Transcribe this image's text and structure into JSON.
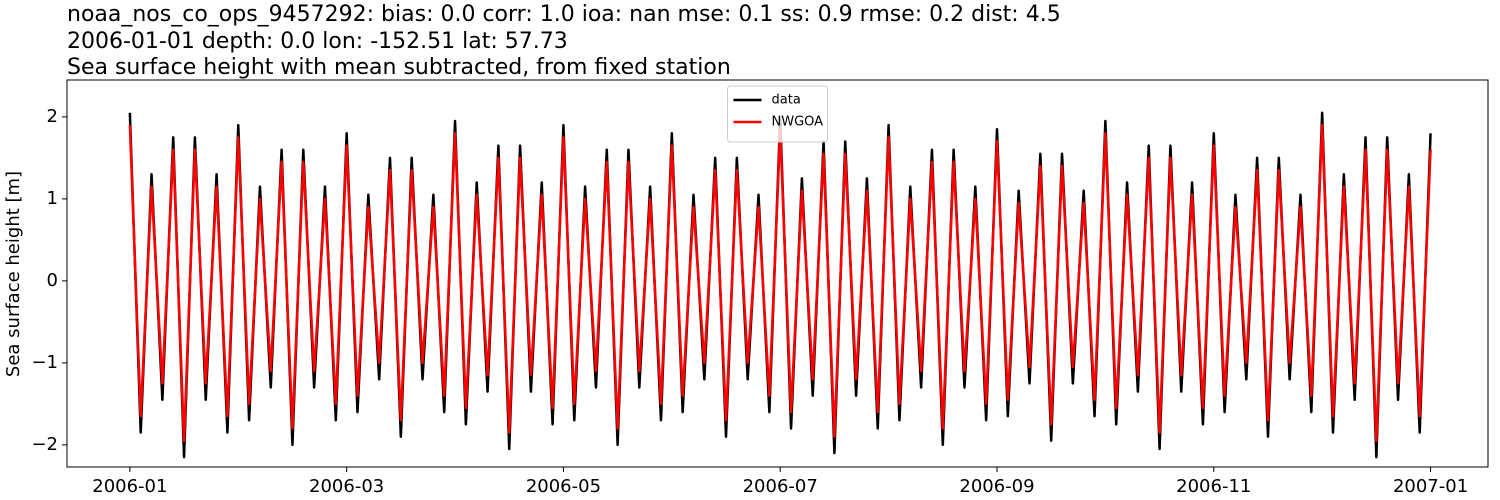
{
  "chart_data": {
    "type": "line",
    "title": [
      "noaa_nos_co_ops_9457292: bias: 0.0  corr: 1.0  ioa: nan  mse: 0.1  ss: 0.9  rmse: 0.2  dist: 4.5",
      "2006-01-01 depth: 0.0 lon: -152.51 lat: 57.73",
      "Sea surface height with mean subtracted, from fixed station"
    ],
    "ylabel": "Sea surface height [m]",
    "xlim": [
      -0.58,
      12.53
    ],
    "ylim": [
      -2.27,
      2.45
    ],
    "xticks": [
      {
        "value": 0,
        "label": "2006-01"
      },
      {
        "value": 2,
        "label": "2006-03"
      },
      {
        "value": 4,
        "label": "2006-05"
      },
      {
        "value": 6,
        "label": "2006-07"
      },
      {
        "value": 8,
        "label": "2006-09"
      },
      {
        "value": 10,
        "label": "2006-11"
      },
      {
        "value": 12,
        "label": "2007-01"
      }
    ],
    "yticks": [
      {
        "value": -2,
        "label": "−2"
      },
      {
        "value": -1,
        "label": "−1"
      },
      0,
      1,
      2
    ],
    "legend": "upper center",
    "x": [
      0,
      0.1,
      0.2,
      0.3,
      0.4,
      0.5,
      0.6,
      0.7,
      0.8,
      0.9,
      1,
      1.1,
      1.2,
      1.3,
      1.4,
      1.5,
      1.6,
      1.7,
      1.8,
      1.9,
      2,
      2.1,
      2.2,
      2.3,
      2.4,
      2.5,
      2.6,
      2.7,
      2.8,
      2.9,
      3,
      3.1,
      3.2,
      3.3,
      3.4,
      3.5,
      3.6,
      3.7,
      3.8,
      3.9,
      4,
      4.1,
      4.2,
      4.3,
      4.4,
      4.5,
      4.6,
      4.7,
      4.8,
      4.9,
      5,
      5.1,
      5.2,
      5.3,
      5.4,
      5.5,
      5.6,
      5.7,
      5.8,
      5.9,
      6,
      6.1,
      6.2,
      6.3,
      6.4,
      6.5,
      6.6,
      6.7,
      6.8,
      6.9,
      7,
      7.1,
      7.2,
      7.3,
      7.4,
      7.5,
      7.6,
      7.7,
      7.8,
      7.9,
      8,
      8.1,
      8.2,
      8.3,
      8.4,
      8.5,
      8.6,
      8.7,
      8.8,
      8.9,
      9,
      9.1,
      9.2,
      9.3,
      9.4,
      9.5,
      9.6,
      9.7,
      9.8,
      9.9,
      10,
      10.1,
      10.2,
      10.3,
      10.4,
      10.5,
      10.6,
      10.7,
      10.8,
      10.9,
      11,
      11.1,
      11.2,
      11.3,
      11.4,
      11.5,
      11.6,
      11.7,
      11.8,
      11.9,
      12
    ],
    "series": [
      {
        "name": "data",
        "color": "#000000",
        "values": [
          2.05,
          -1.85,
          1.3,
          -1.45,
          1.75,
          -2.15,
          1.75,
          -1.45,
          1.3,
          -1.85,
          1.9,
          -1.7,
          1.15,
          -1.3,
          1.6,
          -2.0,
          1.6,
          -1.3,
          1.15,
          -1.7,
          1.8,
          -1.6,
          1.05,
          -1.2,
          1.5,
          -1.9,
          1.5,
          -1.2,
          1.05,
          -1.6,
          1.95,
          -1.75,
          1.2,
          -1.35,
          1.65,
          -2.05,
          1.65,
          -1.35,
          1.2,
          -1.75,
          1.9,
          -1.7,
          1.15,
          -1.3,
          1.6,
          -2.0,
          1.6,
          -1.3,
          1.15,
          -1.7,
          1.8,
          -1.6,
          1.05,
          -1.2,
          1.5,
          -1.9,
          1.5,
          -1.2,
          1.05,
          -1.6,
          2.0,
          -1.8,
          1.25,
          -1.4,
          1.7,
          -2.1,
          1.7,
          -1.4,
          1.25,
          -1.8,
          1.9,
          -1.7,
          1.15,
          -1.3,
          1.6,
          -2.0,
          1.6,
          -1.3,
          1.15,
          -1.7,
          1.85,
          -1.65,
          1.1,
          -1.25,
          1.55,
          -1.95,
          1.55,
          -1.25,
          1.1,
          -1.65,
          1.95,
          -1.75,
          1.2,
          -1.35,
          1.65,
          -2.05,
          1.65,
          -1.35,
          1.2,
          -1.75,
          1.8,
          -1.6,
          1.05,
          -1.2,
          1.5,
          -1.9,
          1.5,
          -1.2,
          1.05,
          -1.6,
          2.05,
          -1.85,
          1.3,
          -1.45,
          1.75,
          -2.15,
          1.75,
          -1.45,
          1.3,
          -1.85,
          1.8
        ]
      },
      {
        "name": "NWGOA",
        "color": "#ff0000",
        "values": [
          1.9,
          -1.65,
          1.15,
          -1.25,
          1.6,
          -1.95,
          1.6,
          -1.25,
          1.15,
          -1.65,
          1.75,
          -1.5,
          1.0,
          -1.1,
          1.45,
          -1.8,
          1.45,
          -1.1,
          1.0,
          -1.5,
          1.65,
          -1.4,
          0.9,
          -1.0,
          1.35,
          -1.7,
          1.35,
          -1.0,
          0.9,
          -1.4,
          1.8,
          -1.55,
          1.05,
          -1.15,
          1.5,
          -1.85,
          1.5,
          -1.15,
          1.05,
          -1.55,
          1.75,
          -1.5,
          1.0,
          -1.1,
          1.45,
          -1.8,
          1.45,
          -1.1,
          1.0,
          -1.5,
          1.65,
          -1.4,
          0.9,
          -1.0,
          1.35,
          -1.7,
          1.35,
          -1.0,
          0.9,
          -1.4,
          1.85,
          -1.6,
          1.1,
          -1.2,
          1.55,
          -1.9,
          1.55,
          -1.2,
          1.1,
          -1.6,
          1.75,
          -1.5,
          1.0,
          -1.1,
          1.45,
          -1.8,
          1.45,
          -1.1,
          1.0,
          -1.5,
          1.7,
          -1.45,
          0.95,
          -1.05,
          1.4,
          -1.75,
          1.4,
          -1.05,
          0.95,
          -1.45,
          1.8,
          -1.55,
          1.05,
          -1.15,
          1.5,
          -1.85,
          1.5,
          -1.15,
          1.05,
          -1.55,
          1.65,
          -1.4,
          0.9,
          -1.0,
          1.35,
          -1.7,
          1.35,
          -1.0,
          0.9,
          -1.4,
          1.9,
          -1.65,
          1.15,
          -1.25,
          1.6,
          -1.95,
          1.6,
          -1.25,
          1.15,
          -1.65,
          1.6
        ]
      }
    ]
  }
}
